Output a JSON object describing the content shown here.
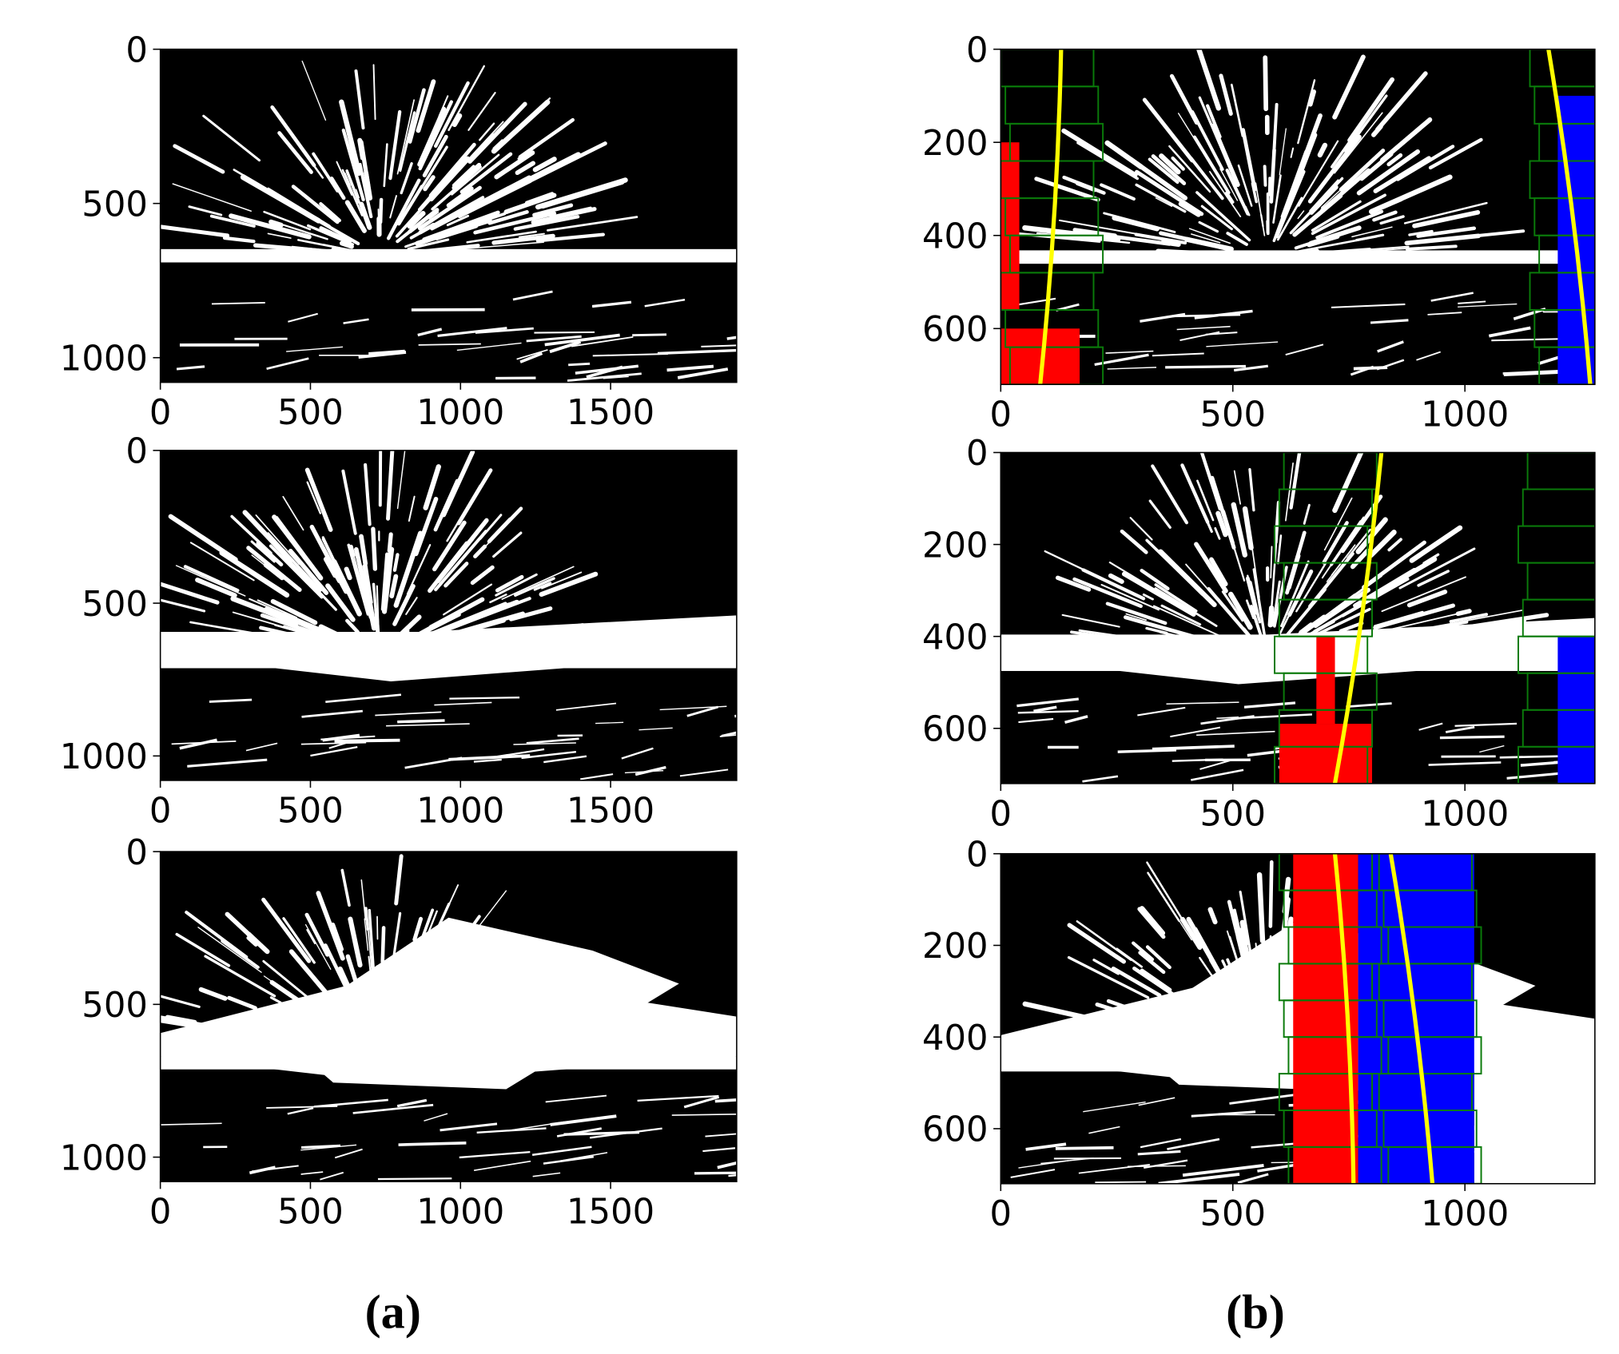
{
  "panels": [
    {
      "xlim": [
        0,
        1920
      ],
      "ylim": [
        0,
        1080
      ],
      "xticks": [
        0,
        500,
        1000,
        1500
      ],
      "yticks": [
        0,
        500,
        1000
      ]
    },
    {
      "xlim": [
        0,
        1280
      ],
      "ylim": [
        0,
        720
      ],
      "xticks": [
        0,
        500,
        1000
      ],
      "yticks": [
        0,
        200,
        400,
        600
      ]
    },
    {
      "xlim": [
        0,
        1920
      ],
      "ylim": [
        0,
        1080
      ],
      "xticks": [
        0,
        500,
        1000,
        1500
      ],
      "yticks": [
        0,
        500,
        1000
      ]
    },
    {
      "xlim": [
        0,
        1280
      ],
      "ylim": [
        0,
        720
      ],
      "xticks": [
        0,
        500,
        1000
      ],
      "yticks": [
        0,
        200,
        400,
        600
      ]
    },
    {
      "xlim": [
        0,
        1920
      ],
      "ylim": [
        0,
        1080
      ],
      "xticks": [
        0,
        500,
        1000,
        1500
      ],
      "yticks": [
        0,
        500,
        1000
      ]
    },
    {
      "xlim": [
        0,
        1280
      ],
      "ylim": [
        0,
        720
      ],
      "xticks": [
        0,
        500,
        1000
      ],
      "yticks": [
        0,
        200,
        400,
        600
      ]
    }
  ],
  "captions": [
    "(a)",
    "(b)"
  ]
}
